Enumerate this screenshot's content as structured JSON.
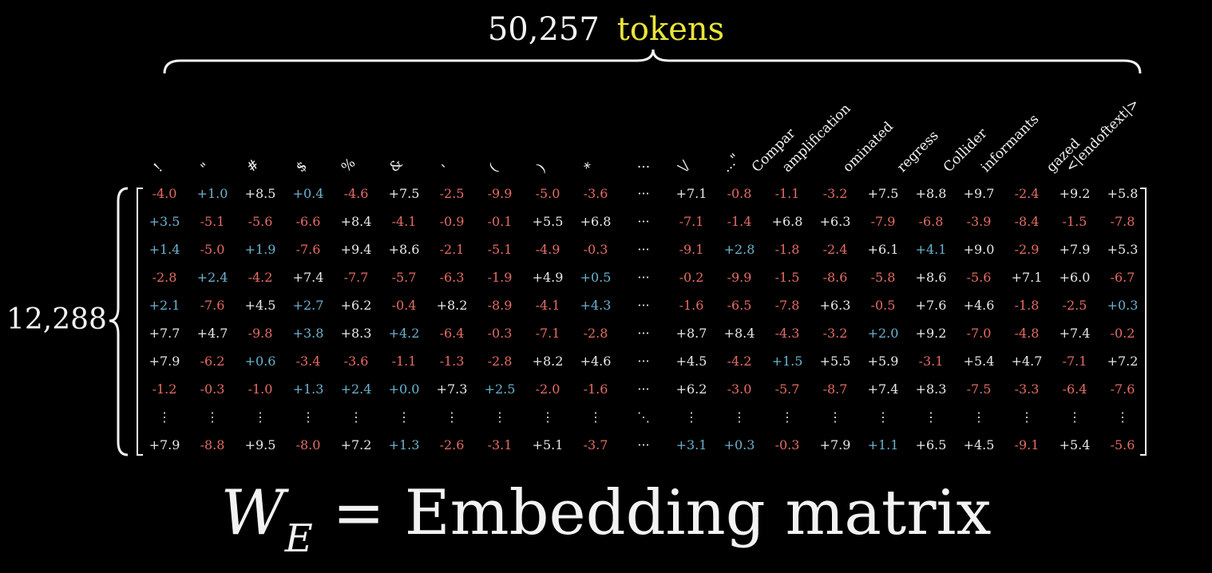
{
  "top_label": {
    "count": "50,257",
    "word": "tokens"
  },
  "left_label": "12,288",
  "formula": {
    "symbol": "W",
    "subscript": "E",
    "equals": "=",
    "text": "Embedding matrix"
  },
  "ellipsis": {
    "horizontal": "···",
    "vertical": "⋮",
    "diagonal": "⋱"
  },
  "headers": [
    "!",
    "\"",
    "#",
    "$",
    "%",
    "&",
    "'",
    "(",
    ")",
    "*",
    "···",
    "\\/",
    "...\"",
    "Compar",
    "amplification",
    "ominated",
    "regress",
    "Collider",
    "informants",
    "gazed",
    "<|endoftext|>"
  ],
  "rows": [
    [
      "-4.0",
      "+1.0",
      "+8.5",
      "+0.4",
      "-4.6",
      "+7.5",
      "-2.5",
      "-9.9",
      "-5.0",
      "-3.6",
      "+7.1",
      "-0.8",
      "-1.1",
      "-3.2",
      "+7.5",
      "+8.8",
      "+9.7",
      "-2.4",
      "+9.2",
      "+5.8"
    ],
    [
      "+3.5",
      "-5.1",
      "-5.6",
      "-6.6",
      "+8.4",
      "-4.1",
      "-0.9",
      "-0.1",
      "+5.5",
      "+6.8",
      "-7.1",
      "-1.4",
      "+6.8",
      "+6.3",
      "-7.9",
      "-6.8",
      "-3.9",
      "-8.4",
      "-1.5",
      "-7.8"
    ],
    [
      "+1.4",
      "-5.0",
      "+1.9",
      "-7.6",
      "+9.4",
      "+8.6",
      "-2.1",
      "-5.1",
      "-4.9",
      "-0.3",
      "-9.1",
      "+2.8",
      "-1.8",
      "-2.4",
      "+6.1",
      "+4.1",
      "+9.0",
      "-2.9",
      "+7.9",
      "+5.3"
    ],
    [
      "-2.8",
      "+2.4",
      "-4.2",
      "+7.4",
      "-7.7",
      "-5.7",
      "-6.3",
      "-1.9",
      "+4.9",
      "+0.5",
      "-0.2",
      "-9.9",
      "-1.5",
      "-8.6",
      "-5.8",
      "+8.6",
      "-5.6",
      "+7.1",
      "+6.0",
      "-6.7"
    ],
    [
      "+2.1",
      "-7.6",
      "+4.5",
      "+2.7",
      "+6.2",
      "-0.4",
      "+8.2",
      "-8.9",
      "-4.1",
      "+4.3",
      "-1.6",
      "-6.5",
      "-7.8",
      "+6.3",
      "-0.5",
      "+7.6",
      "+4.6",
      "-1.8",
      "-2.5",
      "+0.3"
    ],
    [
      "+7.7",
      "+4.7",
      "-9.8",
      "+3.8",
      "+8.3",
      "+4.2",
      "-6.4",
      "-0.3",
      "-7.1",
      "-2.8",
      "+8.7",
      "+8.4",
      "-4.3",
      "-3.2",
      "+2.0",
      "+9.2",
      "-7.0",
      "-4.8",
      "+7.4",
      "-0.2"
    ],
    [
      "+7.9",
      "-6.2",
      "+0.6",
      "-3.4",
      "-3.6",
      "-1.1",
      "-1.3",
      "-2.8",
      "+8.2",
      "+4.6",
      "+4.5",
      "-4.2",
      "+1.5",
      "+5.5",
      "+5.9",
      "-3.1",
      "+5.4",
      "+4.7",
      "-7.1",
      "+7.2"
    ],
    [
      "-1.2",
      "-0.3",
      "-1.0",
      "+1.3",
      "+2.4",
      "+0.0",
      "+7.3",
      "+2.5",
      "-2.0",
      "-1.6",
      "+6.2",
      "-3.0",
      "-5.7",
      "-8.7",
      "+7.4",
      "+8.3",
      "-7.5",
      "-3.3",
      "-6.4",
      "-7.6"
    ]
  ],
  "last_row": [
    "+7.9",
    "-8.8",
    "+9.5",
    "-8.0",
    "+7.2",
    "+1.3",
    "-2.6",
    "-3.1",
    "+5.1",
    "-3.7",
    "+3.1",
    "+0.3",
    "-0.3",
    "+7.9",
    "+1.1",
    "+6.5",
    "+4.5",
    "-9.1",
    "+5.4",
    "-5.6"
  ]
}
